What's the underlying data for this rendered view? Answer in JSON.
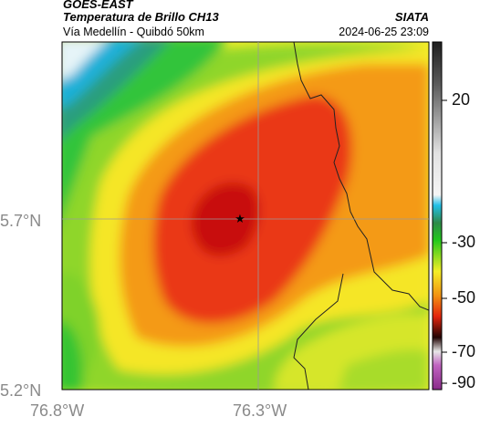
{
  "header": {
    "satellite": "GOES-EAST",
    "product": "Temperatura de Brillo CH13",
    "route": "Vía Medellín - Quibdó 50km",
    "brand": "SIATA",
    "datetime": "2024-06-25 23:09"
  },
  "axes": {
    "lat_labels": [
      "5.7°N",
      "5.2°N"
    ],
    "lon_labels": [
      "76.8°W",
      "76.3°W"
    ]
  },
  "colorbar": {
    "ticks": [
      "20",
      "-30",
      "-50",
      "-70",
      "-90"
    ],
    "colors": {
      "hot_dark": "#2a2a2a",
      "warm_gray": "#bdbdbd",
      "cyan": "#2ec4e6",
      "green": "#28c81e",
      "yellow": "#f7ef2a",
      "orange": "#f28a10",
      "red": "#e8250f",
      "dark_red": "#7a0b0b",
      "magenta": "#b84ab8"
    }
  },
  "marker": {
    "symbol": "★"
  }
}
